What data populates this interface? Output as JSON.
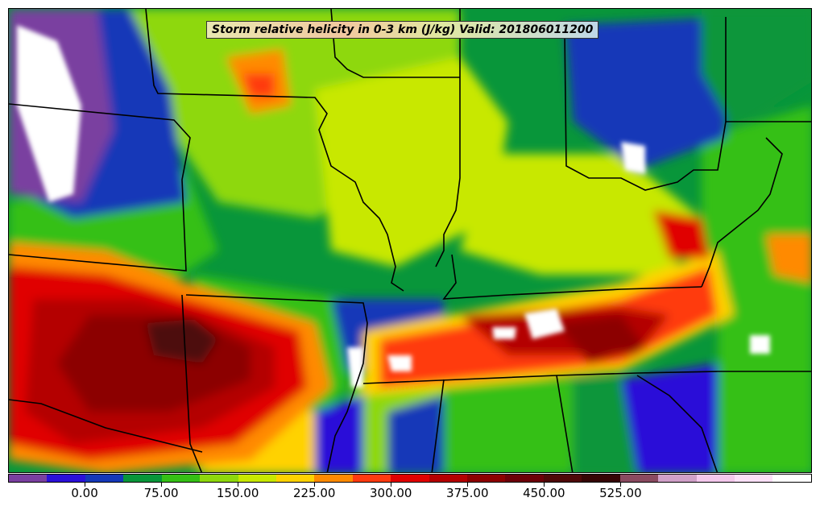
{
  "title": "Storm relative helicity in 0-3 km (J/kg) Valid: 201806011200",
  "colorbar": {
    "colors": [
      "#7a3fa0",
      "#2a10d8",
      "#1438b8",
      "#08963a",
      "#35c015",
      "#8ed80c",
      "#c8e800",
      "#ffd200",
      "#ff8a00",
      "#ff3a10",
      "#e00000",
      "#b40000",
      "#8c0000",
      "#6c0008",
      "#4e0808",
      "#350505",
      "#8a4a60",
      "#d0a0c8",
      "#f4c8ec",
      "#fce0f8",
      "#ffffff"
    ],
    "tick_labels": [
      "0.00",
      "75.00",
      "150.00",
      "225.00",
      "300.00",
      "375.00",
      "450.00",
      "525.00"
    ],
    "tick_positions": [
      2,
      4,
      6,
      8,
      10,
      12,
      14,
      16
    ]
  },
  "legend_icon": "colorbar-icon"
}
